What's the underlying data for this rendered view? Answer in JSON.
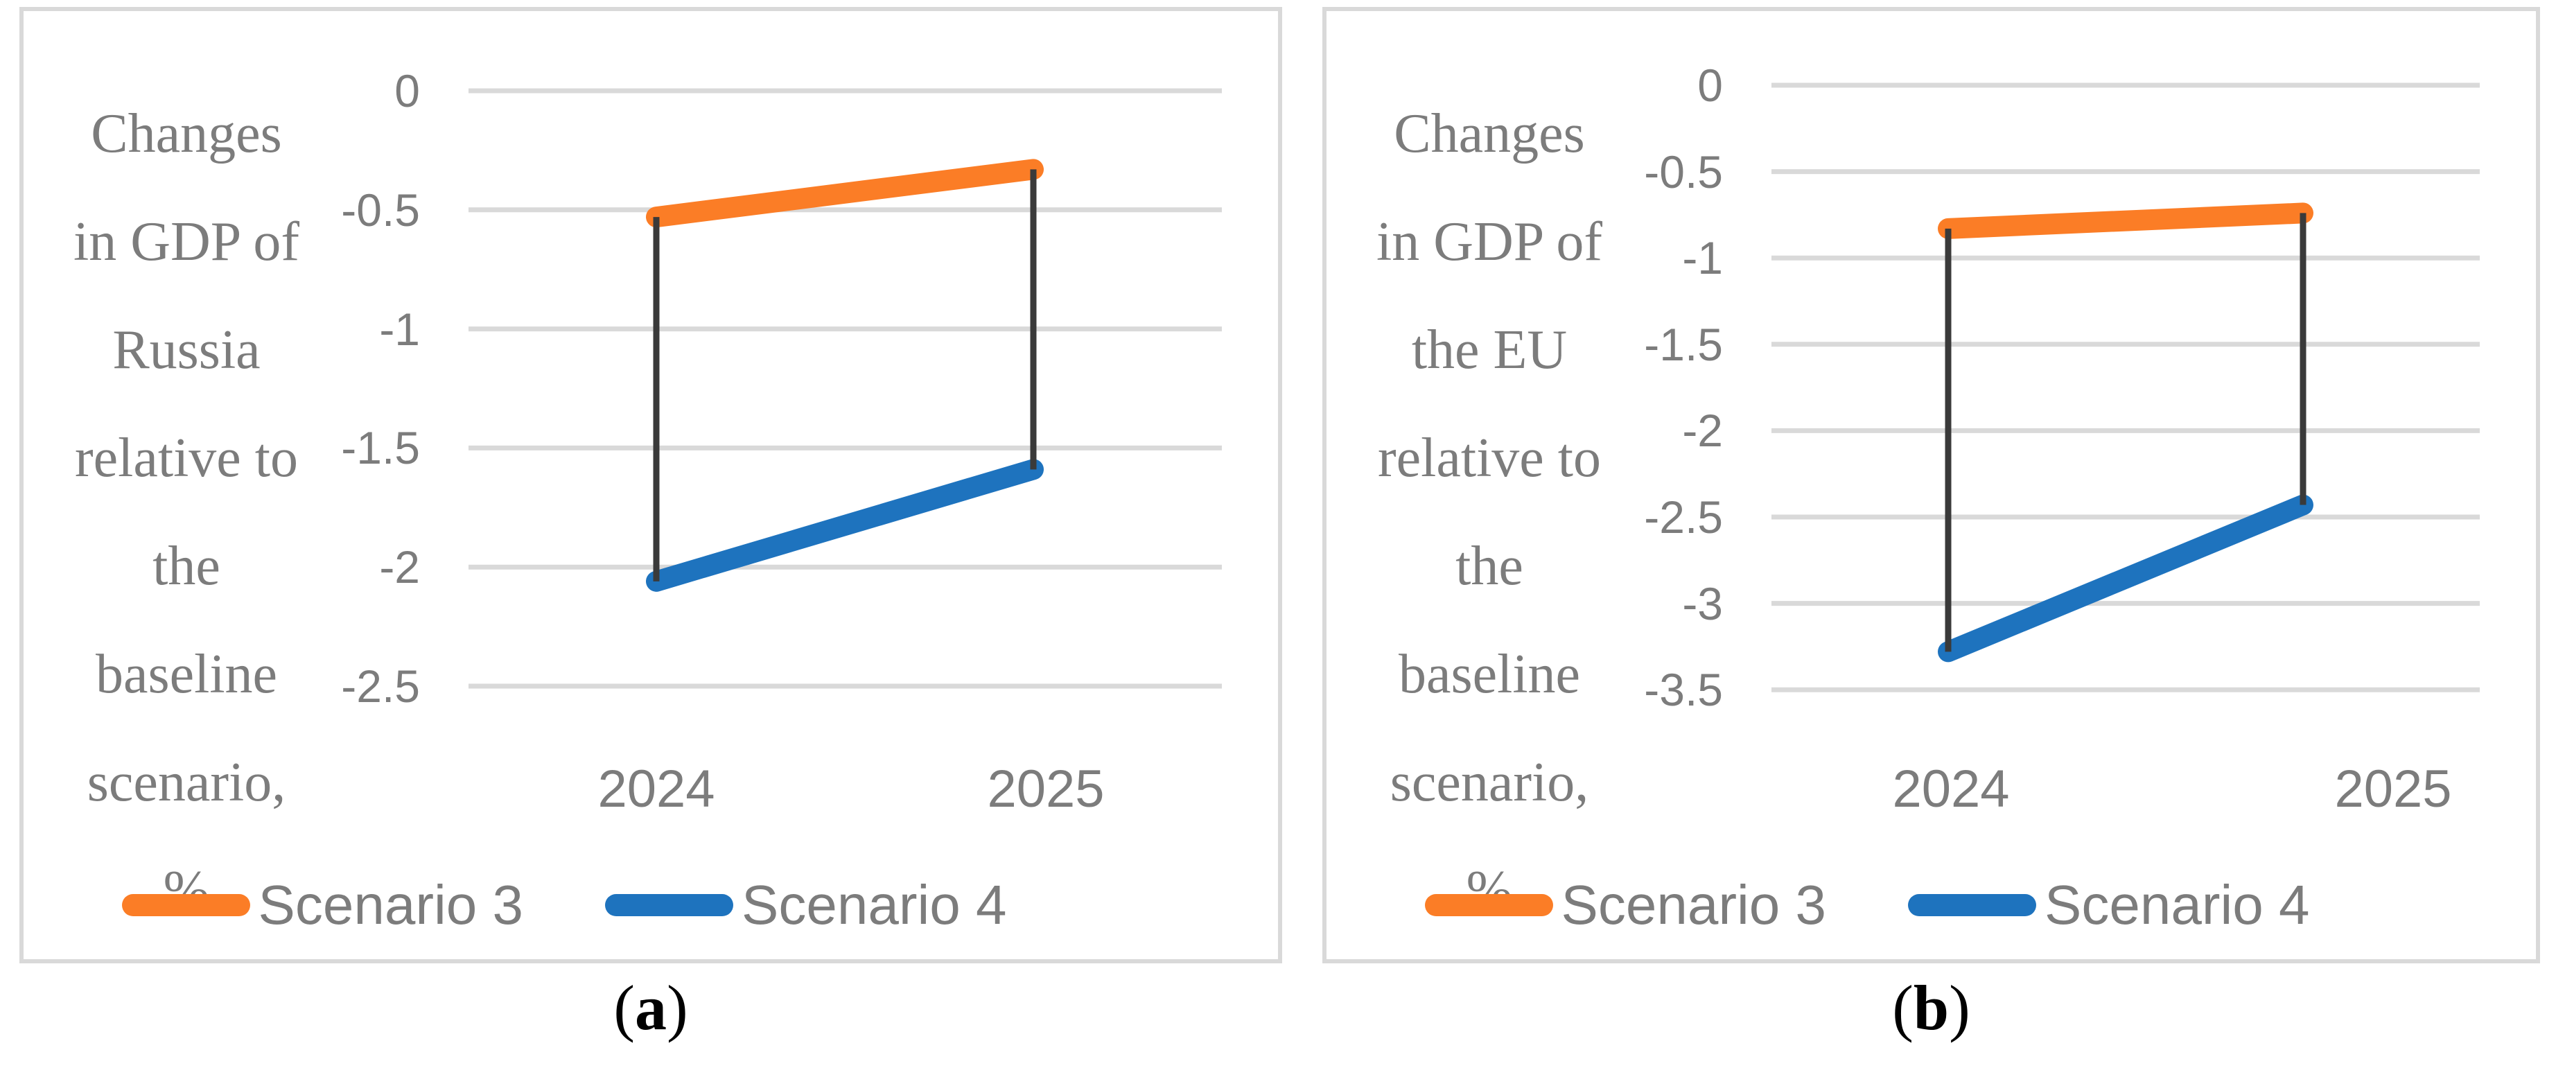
{
  "figure": {
    "caption_paren_open": "(",
    "caption_paren_close": ")"
  },
  "colors": {
    "scenario3_orange": "#fb7d26",
    "scenario4_blue": "#1e73be",
    "gridline": "#d9d9d9",
    "axis_text": "#7c7c7c",
    "connector": "#3a3a3a",
    "panel_border": "#d9d9d9",
    "caption_text": "#000000"
  },
  "chart_data": [
    {
      "type": "line",
      "panel_label": "a",
      "title": "Changes\nin GDP of\nRussia\nrelative to\nthe\nbaseline\nscenario,\n%",
      "categories": [
        "2024",
        "2025"
      ],
      "series": [
        {
          "name": "Scenario 3",
          "color": "#fb7d26",
          "values": [
            -0.53,
            -0.33
          ]
        },
        {
          "name": "Scenario 4",
          "color": "#1e73be",
          "values": [
            -2.06,
            -1.59
          ]
        }
      ],
      "ylim": [
        -2.5,
        0
      ],
      "y_ticks": [
        0,
        -0.5,
        -1,
        -1.5,
        -2,
        -2.5
      ],
      "y_tick_labels": [
        "0",
        "-0.5",
        "-1",
        "-1.5",
        "-2",
        "-2.5"
      ],
      "grid": true,
      "legend_position": "bottom",
      "annotations": "black vertical connector lines join Scenario 3 and Scenario 4 points at each year"
    },
    {
      "type": "line",
      "panel_label": "b",
      "title": "Changes\nin GDP of\nthe EU\nrelative to\nthe\nbaseline\nscenario,\n%",
      "categories": [
        "2024",
        "2025"
      ],
      "series": [
        {
          "name": "Scenario 3",
          "color": "#fb7d26",
          "values": [
            -0.83,
            -0.74
          ]
        },
        {
          "name": "Scenario 4",
          "color": "#1e73be",
          "values": [
            -3.28,
            -2.43
          ]
        }
      ],
      "ylim": [
        -3.5,
        0
      ],
      "y_ticks": [
        0,
        -0.5,
        -1,
        -1.5,
        -2,
        -2.5,
        -3,
        -3.5
      ],
      "y_tick_labels": [
        "0",
        "-0.5",
        "-1",
        "-1.5",
        "-2",
        "-2.5",
        "-3",
        "-3.5"
      ],
      "grid": true,
      "legend_position": "bottom",
      "annotations": "black vertical connector lines join Scenario 3 and Scenario 4 points at each year"
    }
  ]
}
